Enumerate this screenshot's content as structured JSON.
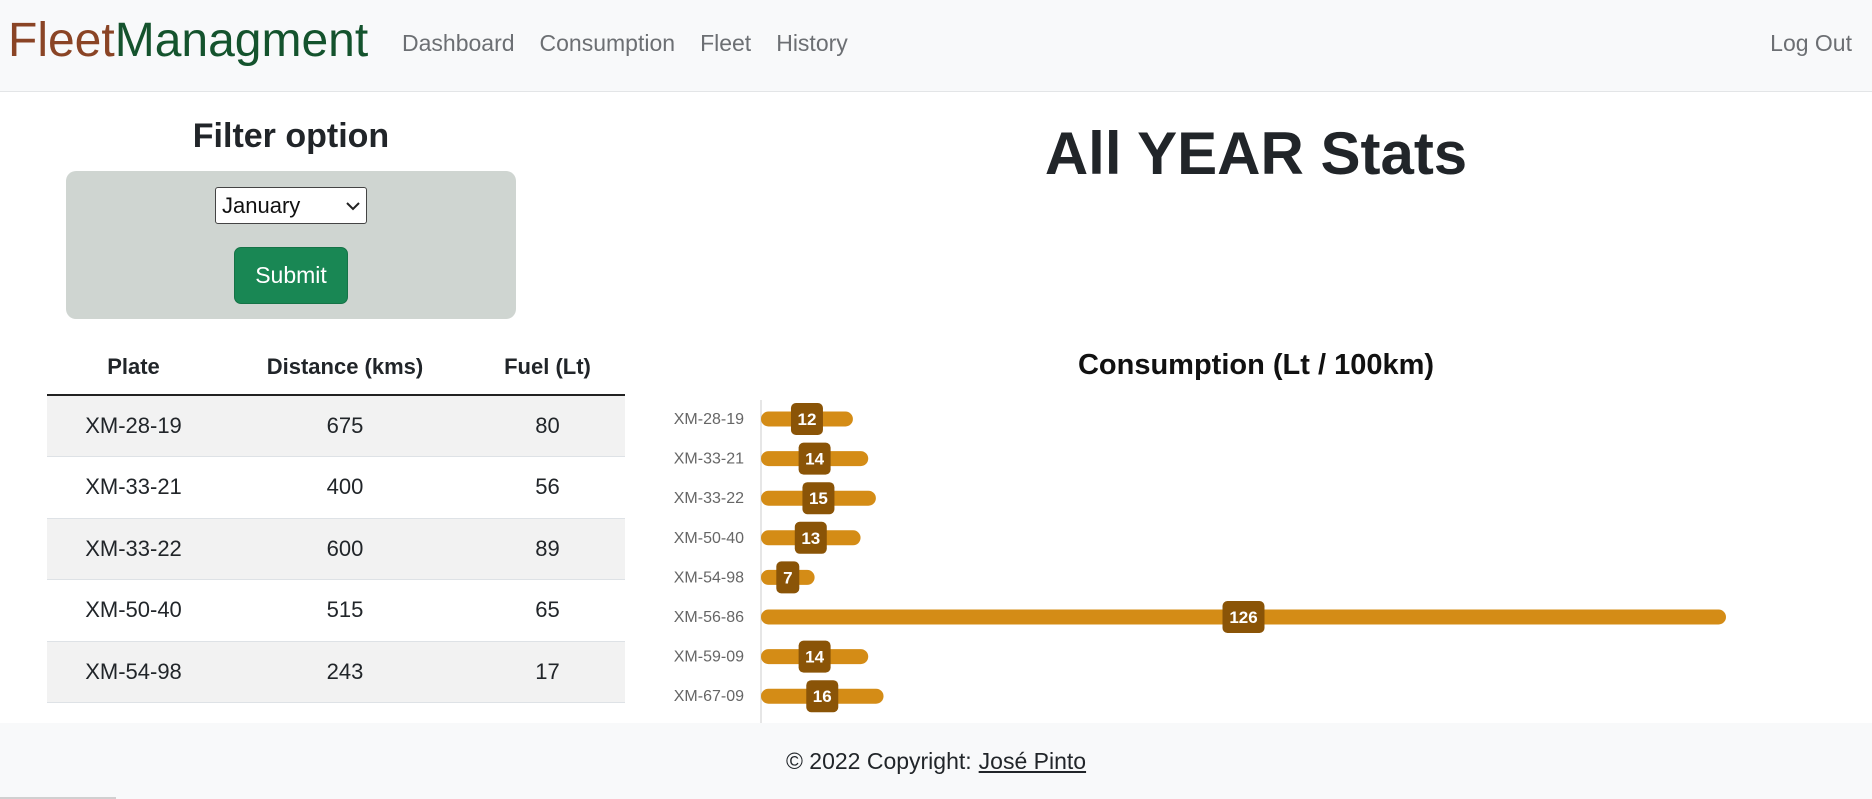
{
  "navbar": {
    "brand_part1": "Fleet",
    "brand_part2": "Managment",
    "links": [
      "Dashboard",
      "Consumption",
      "Fleet",
      "History"
    ],
    "logout": "Log Out"
  },
  "filter": {
    "title": "Filter option",
    "selected_month": "January",
    "submit_label": "Submit"
  },
  "table": {
    "headers": [
      "Plate",
      "Distance (kms)",
      "Fuel (Lt)"
    ],
    "rows": [
      [
        "XM-28-19",
        "675",
        "80"
      ],
      [
        "XM-33-21",
        "400",
        "56"
      ],
      [
        "XM-33-22",
        "600",
        "89"
      ],
      [
        "XM-50-40",
        "515",
        "65"
      ],
      [
        "XM-54-98",
        "243",
        "17"
      ]
    ]
  },
  "main": {
    "title": "All YEAR Stats"
  },
  "colors": {
    "bar": "#d48c16",
    "label_bg": "#8a5407",
    "brand_part1": "#8a4425",
    "brand_part2": "#14532d",
    "submit": "#198754"
  },
  "chart_data": {
    "type": "bar",
    "orientation": "horizontal",
    "title": "Consumption (Lt / 100km)",
    "categories": [
      "XM-28-19",
      "XM-33-21",
      "XM-33-22",
      "XM-50-40",
      "XM-54-98",
      "XM-56-86",
      "XM-59-09",
      "XM-67-09"
    ],
    "values": [
      12,
      14,
      15,
      13,
      7,
      126,
      14,
      16
    ],
    "xlim": [
      0,
      126
    ]
  },
  "footer": {
    "copyright": "© 2022 Copyright:",
    "author": "José Pinto"
  }
}
